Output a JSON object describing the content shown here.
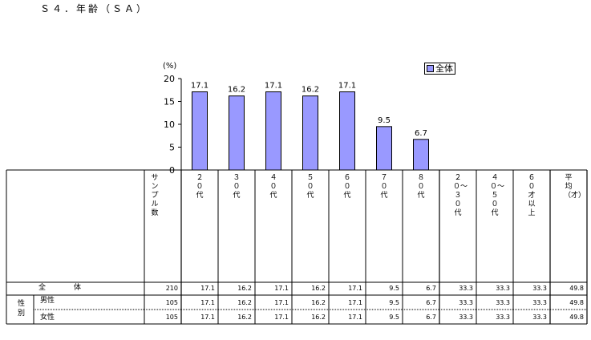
{
  "title": "Ｓ４．年齢（ＳＡ）",
  "chart_data": {
    "type": "bar",
    "categories": [
      "２０代",
      "３０代",
      "４０代",
      "５０代",
      "６０代",
      "７０代",
      "８０代"
    ],
    "series": [
      {
        "name": "全体",
        "values": [
          17.1,
          16.2,
          17.1,
          16.2,
          17.1,
          9.5,
          6.7
        ]
      }
    ],
    "ylabel": "(%)",
    "ylim": [
      0,
      20
    ],
    "yticks": [
      0,
      5,
      10,
      15,
      20
    ],
    "legend": "top-right",
    "bar_color": "#9999ff"
  },
  "table": {
    "columns": [
      "サンプル数",
      "２０代",
      "３０代",
      "４０代",
      "５０代",
      "６０代",
      "７０代",
      "８０代",
      "２０〜３０代",
      "４０〜５０代",
      "６０才以上",
      "平均（才）"
    ],
    "group_label": "性別",
    "rows": [
      {
        "label": "全　　　体",
        "values": [
          "210",
          "17.1",
          "16.2",
          "17.1",
          "16.2",
          "17.1",
          "9.5",
          "6.7",
          "33.3",
          "33.3",
          "33.3",
          "49.8"
        ]
      },
      {
        "label": "男性",
        "values": [
          "105",
          "17.1",
          "16.2",
          "17.1",
          "16.2",
          "17.1",
          "9.5",
          "6.7",
          "33.3",
          "33.3",
          "33.3",
          "49.8"
        ]
      },
      {
        "label": "女性",
        "values": [
          "105",
          "17.1",
          "16.2",
          "17.1",
          "16.2",
          "17.1",
          "9.5",
          "6.7",
          "33.3",
          "33.3",
          "33.3",
          "49.8"
        ]
      }
    ]
  }
}
